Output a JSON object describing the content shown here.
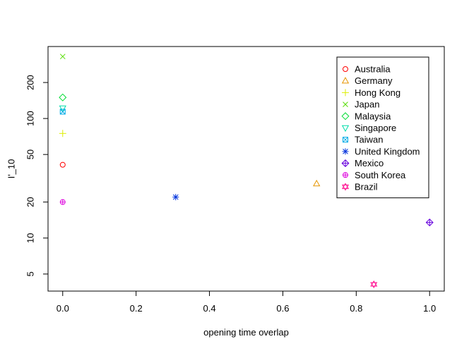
{
  "chart_data": {
    "type": "scatter",
    "title": "",
    "xlabel": "opening time overlap",
    "ylabel": "I'_10",
    "x_scale": "linear",
    "y_scale": "log",
    "xlim": [
      -0.04,
      1.04
    ],
    "ylim": [
      3.6,
      400
    ],
    "xticks": [
      0.0,
      0.2,
      0.4,
      0.6,
      0.8,
      1.0
    ],
    "xtick_labels": [
      "0.0",
      "0.2",
      "0.4",
      "0.6",
      "0.8",
      "1.0"
    ],
    "yticks": [
      5,
      10,
      20,
      50,
      100,
      200
    ],
    "ytick_labels": [
      "5",
      "10",
      "20",
      "50",
      "100",
      "200"
    ],
    "grid": false,
    "legend_position": "top-right",
    "series": [
      {
        "name": "Australia",
        "color": "#FF0000",
        "marker": "circle",
        "x": [
          0.0
        ],
        "y": [
          41
        ]
      },
      {
        "name": "Germany",
        "color": "#E69500",
        "marker": "triangle-up",
        "x": [
          0.692
        ],
        "y": [
          28.5
        ]
      },
      {
        "name": "Hong Kong",
        "color": "#DDEE00",
        "marker": "plus",
        "x": [
          0.0
        ],
        "y": [
          75
        ]
      },
      {
        "name": "Japan",
        "color": "#55DD00",
        "marker": "cross",
        "x": [
          0.0
        ],
        "y": [
          330
        ]
      },
      {
        "name": "Malaysia",
        "color": "#00DD33",
        "marker": "diamond",
        "x": [
          0.0
        ],
        "y": [
          150
        ]
      },
      {
        "name": "Singapore",
        "color": "#00DDAA",
        "marker": "triangle-down",
        "x": [
          0.0
        ],
        "y": [
          122
        ]
      },
      {
        "name": "Taiwan",
        "color": "#00AAE6",
        "marker": "square-x",
        "x": [
          0.0
        ],
        "y": [
          114
        ]
      },
      {
        "name": "United Kingdom",
        "color": "#0033DD",
        "marker": "asterisk",
        "x": [
          0.308
        ],
        "y": [
          22
        ]
      },
      {
        "name": "Mexico",
        "color": "#6600DD",
        "marker": "diamond-plus",
        "x": [
          1.0
        ],
        "y": [
          13.5
        ]
      },
      {
        "name": "South Korea",
        "color": "#DD00DD",
        "marker": "circle-plus",
        "x": [
          0.0
        ],
        "y": [
          20
        ]
      },
      {
        "name": "Brazil",
        "color": "#FF1493",
        "marker": "star-of-david",
        "x": [
          0.848
        ],
        "y": [
          4.1
        ]
      }
    ]
  }
}
